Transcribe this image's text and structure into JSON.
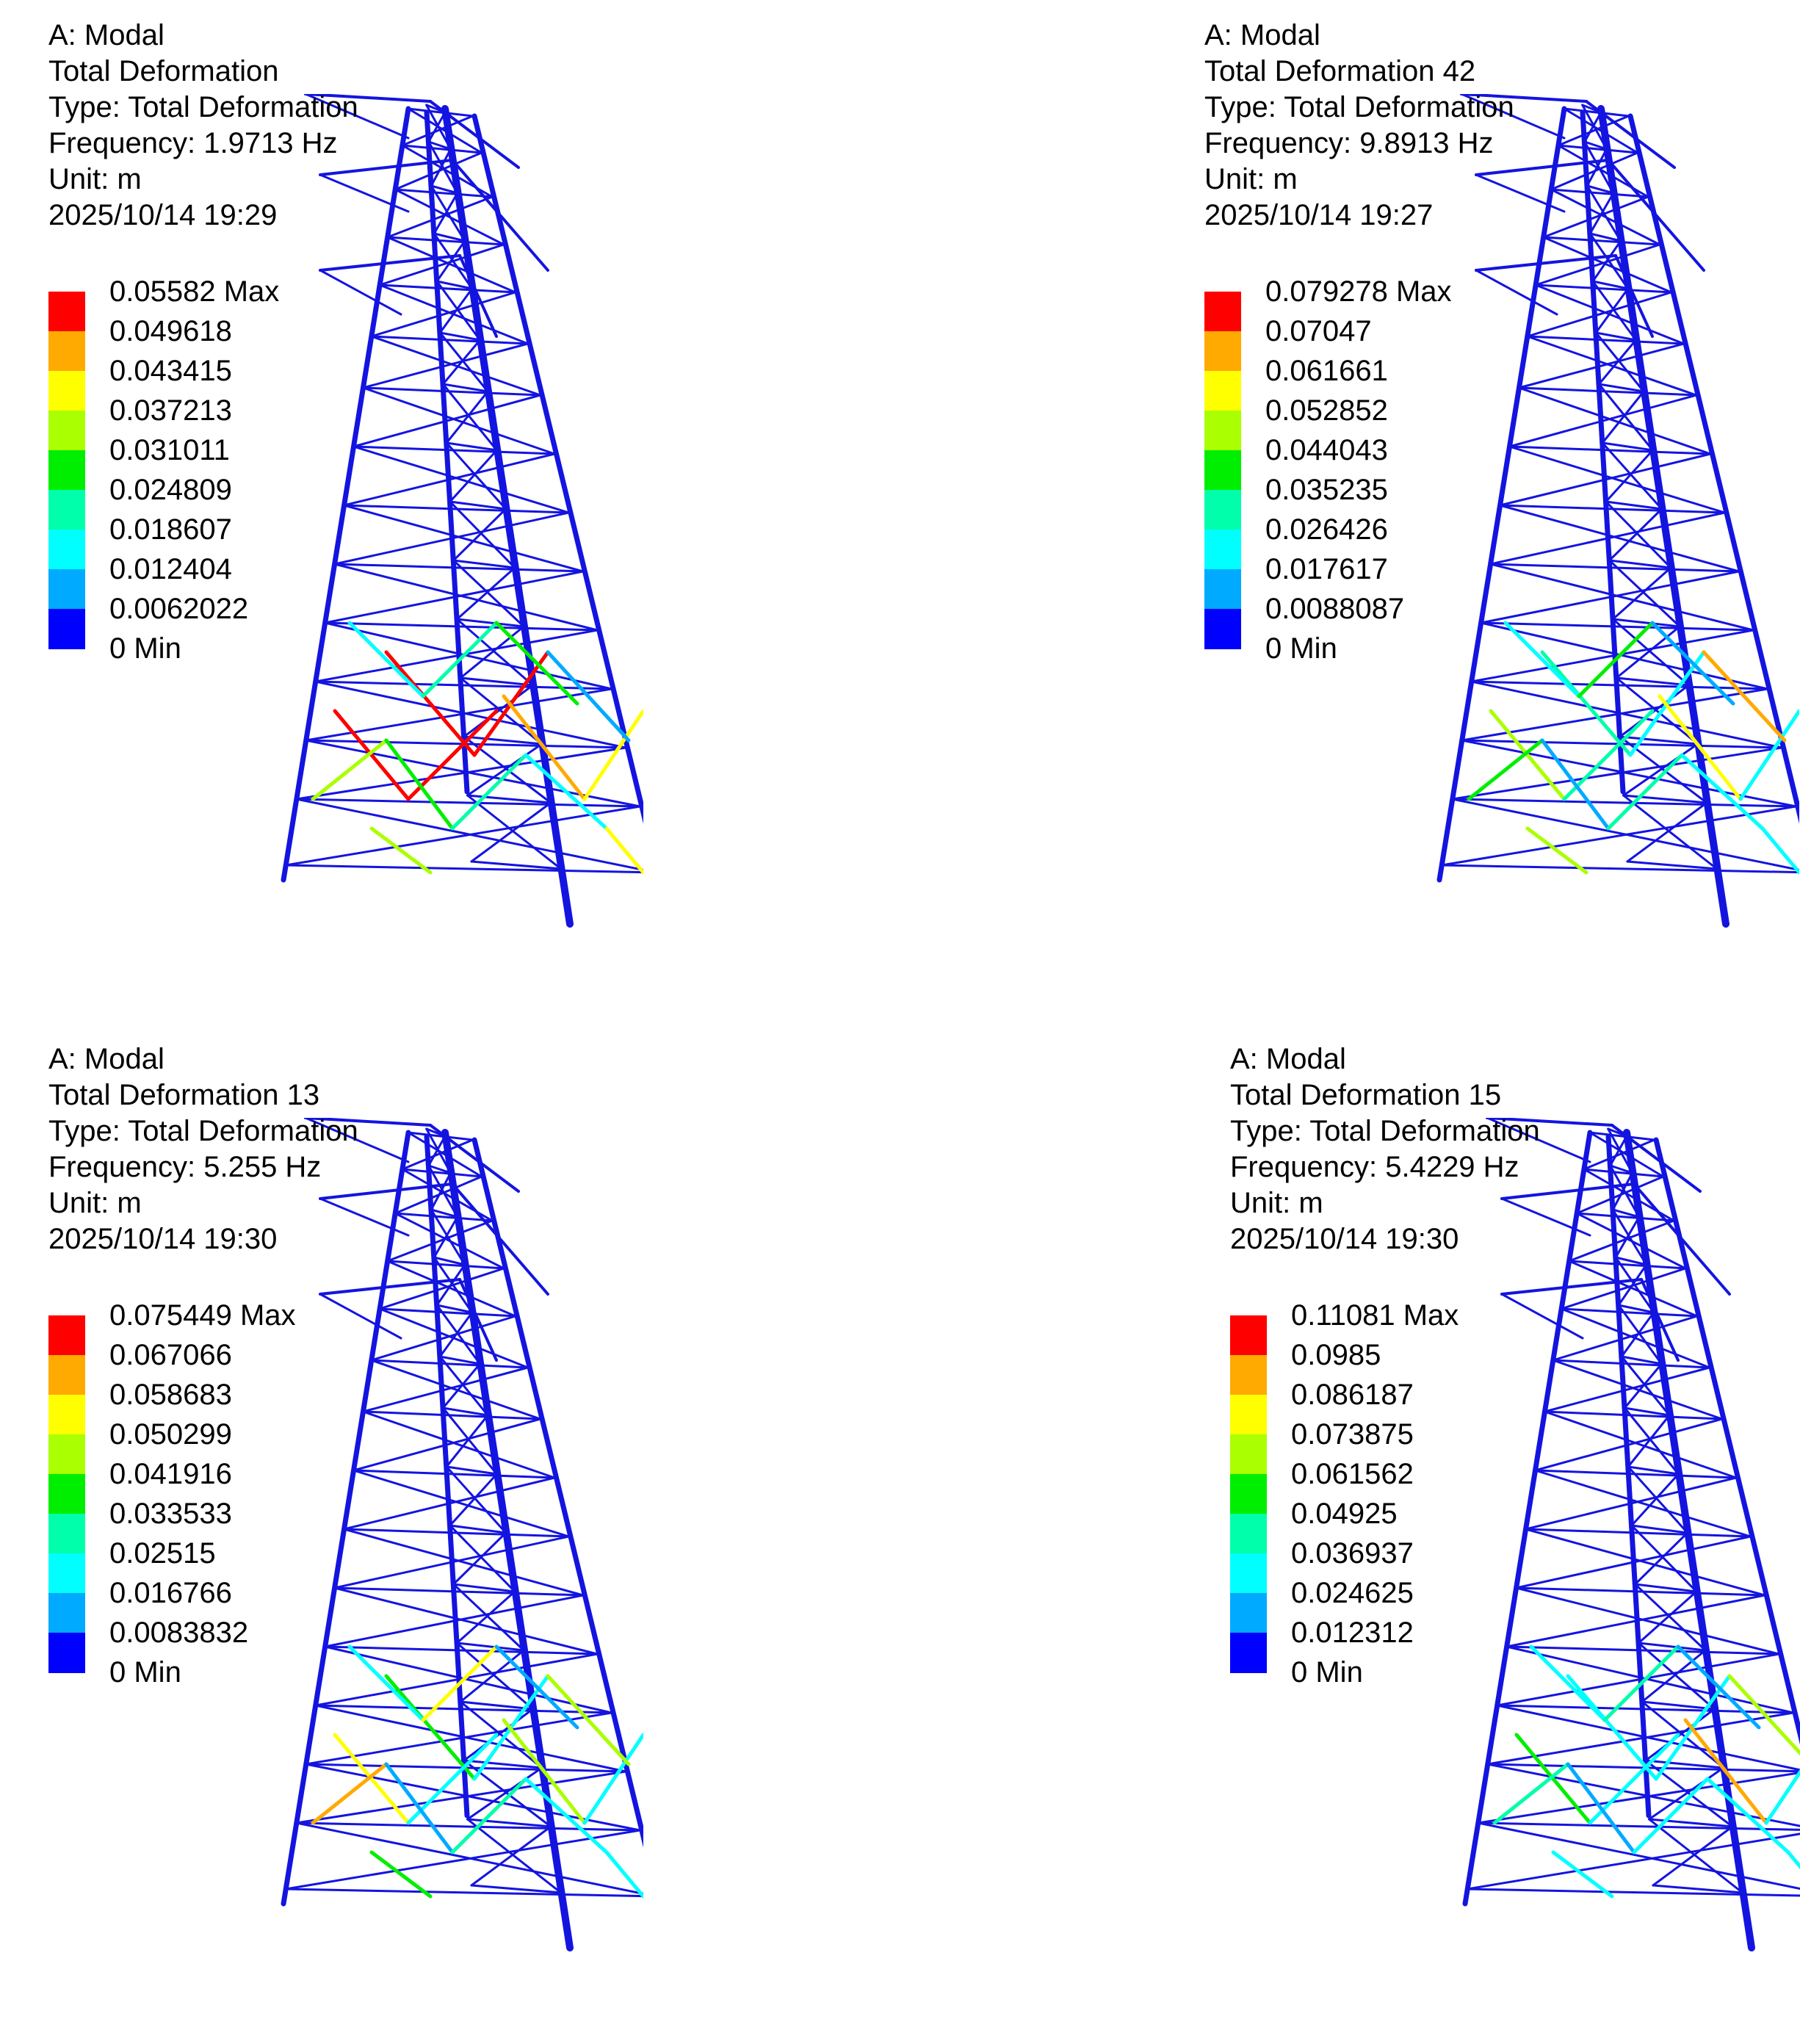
{
  "colors": {
    "member": "#1414e0",
    "scale": [
      "#ff0000",
      "#ffaa00",
      "#ffff00",
      "#aaff00",
      "#00ee00",
      "#00ffaa",
      "#00ffff",
      "#00aaff",
      "#0000ff"
    ]
  },
  "panels": [
    {
      "analysis": "A: Modal",
      "result": "Total Deformation",
      "type": "Type: Total Deformation",
      "frequency": "Frequency: 1.9713 Hz",
      "unit": "Unit: m",
      "timestamp": "2025/10/14 19:29",
      "legend": [
        "0.05582 Max",
        "0.049618",
        "0.043415",
        "0.037213",
        "0.031011",
        "0.024809",
        "0.018607",
        "0.012404",
        "0.0062022",
        "0 Min"
      ],
      "hotspots": [
        {
          "member": "a",
          "level": 0
        },
        {
          "member": "b",
          "level": 0
        },
        {
          "member": "c",
          "level": 0
        },
        {
          "member": "d",
          "level": 0
        },
        {
          "member": "e",
          "level": 1
        },
        {
          "member": "f",
          "level": 2
        },
        {
          "member": "g",
          "level": 3
        },
        {
          "member": "h",
          "level": 4
        },
        {
          "member": "i",
          "level": 5
        },
        {
          "member": "j",
          "level": 6
        },
        {
          "member": "k",
          "level": 7
        },
        {
          "member": "l",
          "level": 6
        },
        {
          "member": "m",
          "level": 5
        },
        {
          "member": "n",
          "level": 4
        },
        {
          "member": "o",
          "level": 3
        },
        {
          "member": "p",
          "level": 2
        }
      ]
    },
    {
      "analysis": "A: Modal",
      "result": "Total Deformation 42",
      "type": "Type: Total Deformation",
      "frequency": "Frequency: 9.8913 Hz",
      "unit": "Unit: m",
      "timestamp": "2025/10/14 19:27",
      "legend": [
        "0.079278 Max",
        "0.07047",
        "0.061661",
        "0.052852",
        "0.044043",
        "0.035235",
        "0.026426",
        "0.017617",
        "0.0088087",
        "0 Min"
      ],
      "hotspots": [
        {
          "member": "a",
          "level": 5
        },
        {
          "member": "b",
          "level": 6
        },
        {
          "member": "c",
          "level": 3
        },
        {
          "member": "d",
          "level": 5
        },
        {
          "member": "e",
          "level": 2
        },
        {
          "member": "f",
          "level": 6
        },
        {
          "member": "g",
          "level": 4
        },
        {
          "member": "h",
          "level": 7
        },
        {
          "member": "i",
          "level": 5
        },
        {
          "member": "j",
          "level": 6
        },
        {
          "member": "k",
          "level": 1
        },
        {
          "member": "l",
          "level": 6
        },
        {
          "member": "m",
          "level": 4
        },
        {
          "member": "n",
          "level": 7
        },
        {
          "member": "o",
          "level": 3
        },
        {
          "member": "p",
          "level": 6
        }
      ]
    },
    {
      "analysis": "A: Modal",
      "result": "Total Deformation 13",
      "type": "Type: Total Deformation",
      "frequency": "Frequency: 5.255 Hz",
      "unit": "Unit: m",
      "timestamp": "2025/10/14 19:30",
      "legend": [
        "0.075449 Max",
        "0.067066",
        "0.058683",
        "0.050299",
        "0.041916",
        "0.033533",
        "0.02515",
        "0.016766",
        "0.0083832",
        "0 Min"
      ],
      "hotspots": [
        {
          "member": "a",
          "level": 4
        },
        {
          "member": "b",
          "level": 6
        },
        {
          "member": "c",
          "level": 2
        },
        {
          "member": "d",
          "level": 6
        },
        {
          "member": "e",
          "level": 3
        },
        {
          "member": "f",
          "level": 6
        },
        {
          "member": "g",
          "level": 1
        },
        {
          "member": "h",
          "level": 7
        },
        {
          "member": "i",
          "level": 5
        },
        {
          "member": "j",
          "level": 6
        },
        {
          "member": "k",
          "level": 3
        },
        {
          "member": "l",
          "level": 6
        },
        {
          "member": "m",
          "level": 2
        },
        {
          "member": "n",
          "level": 7
        },
        {
          "member": "o",
          "level": 4
        },
        {
          "member": "p",
          "level": 6
        }
      ]
    },
    {
      "analysis": "A: Modal",
      "result": "Total Deformation 15",
      "type": "Type: Total Deformation",
      "frequency": "Frequency: 5.4229 Hz",
      "unit": "Unit: m",
      "timestamp": "2025/10/14 19:30",
      "legend": [
        "0.11081 Max",
        "0.0985",
        "0.086187",
        "0.073875",
        "0.061562",
        "0.04925",
        "0.036937",
        "0.024625",
        "0.012312",
        "0 Min"
      ],
      "hotspots": [
        {
          "member": "a",
          "level": 6
        },
        {
          "member": "b",
          "level": 6
        },
        {
          "member": "c",
          "level": 4
        },
        {
          "member": "d",
          "level": 6
        },
        {
          "member": "e",
          "level": 1
        },
        {
          "member": "f",
          "level": 6
        },
        {
          "member": "g",
          "level": 5
        },
        {
          "member": "h",
          "level": 7
        },
        {
          "member": "i",
          "level": 6
        },
        {
          "member": "j",
          "level": 6
        },
        {
          "member": "k",
          "level": 3
        },
        {
          "member": "l",
          "level": 6
        },
        {
          "member": "m",
          "level": 5
        },
        {
          "member": "n",
          "level": 7
        },
        {
          "member": "o",
          "level": 6
        },
        {
          "member": "p",
          "level": 6
        }
      ]
    }
  ]
}
